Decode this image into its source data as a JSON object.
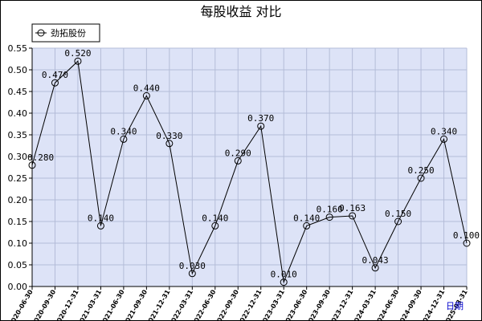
{
  "chart_data": {
    "type": "line",
    "title": "每股收益  对比",
    "xlabel": "日期",
    "ylabel": "",
    "ylim": [
      0,
      0.55
    ],
    "yticks": [
      "0.00",
      "0.05",
      "0.10",
      "0.15",
      "0.20",
      "0.25",
      "0.30",
      "0.35",
      "0.40",
      "0.45",
      "0.50",
      "0.55"
    ],
    "grid": true,
    "legend_position": "top-left",
    "categories": [
      "2020-06-30",
      "2020-09-30",
      "2020-12-31",
      "2021-03-31",
      "2021-06-30",
      "2021-09-30",
      "2021-12-31",
      "2022-03-31",
      "2022-06-30",
      "2022-09-30",
      "2022-12-31",
      "2023-03-31",
      "2023-06-30",
      "2023-09-30",
      "2023-12-31",
      "2024-03-31",
      "2024-06-30",
      "2024-09-30",
      "2024-12-31",
      "2025-03-31"
    ],
    "series": [
      {
        "name": "劲拓股份",
        "values": [
          0.28,
          0.47,
          0.52,
          0.14,
          0.34,
          0.44,
          0.33,
          0.03,
          0.14,
          0.29,
          0.37,
          0.01,
          0.14,
          0.16,
          0.163,
          0.043,
          0.15,
          0.25,
          0.34,
          0.1
        ],
        "labels": [
          "0.280",
          "0.470",
          "0.520",
          "0.140",
          "0.340",
          "0.440",
          "0.330",
          "0.030",
          "0.140",
          "0.290",
          "0.370",
          "0.010",
          "0.140",
          "0.160",
          "0.163",
          "0.043",
          "0.150",
          "0.250",
          "0.340",
          "0.100"
        ]
      }
    ],
    "colors": {
      "line": "#000000",
      "plot_bg": "#dde3f7",
      "grid": "#b4bcd8"
    }
  }
}
